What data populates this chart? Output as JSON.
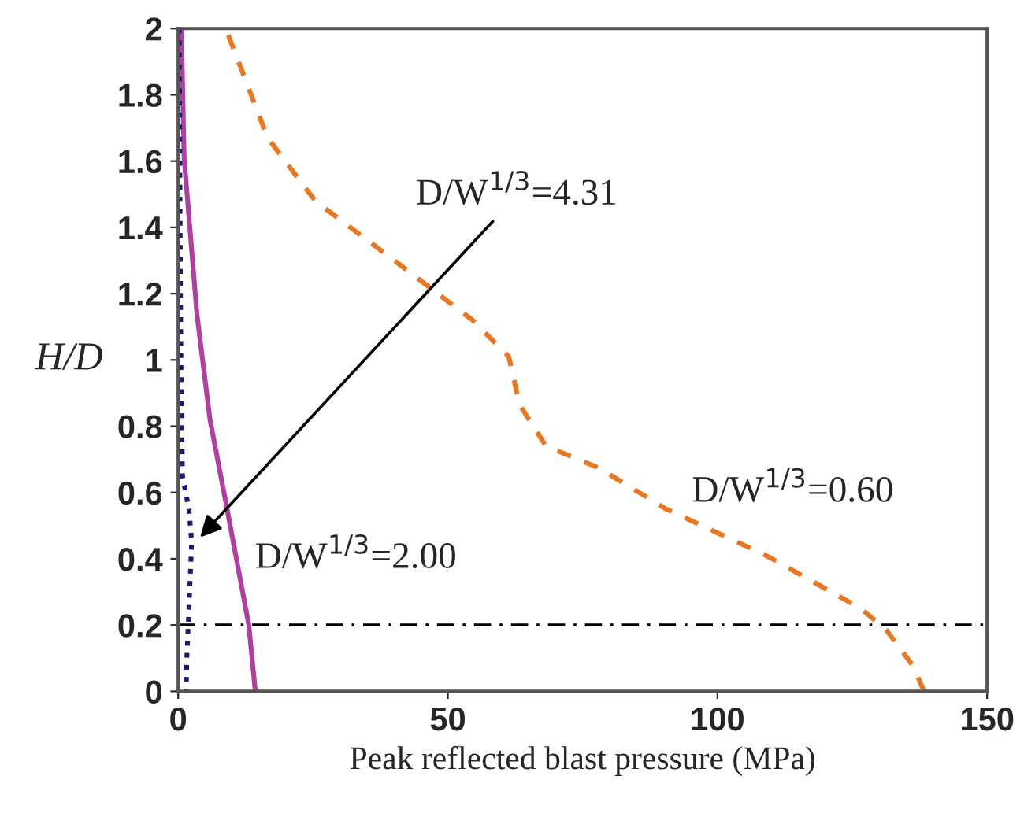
{
  "chart_data": {
    "type": "line",
    "xlabel": "Peak reflected blast pressure (MPa)",
    "ylabel": "H/D",
    "xlim": [
      0,
      150
    ],
    "xticks": [
      0,
      50,
      100,
      150
    ],
    "ylim": [
      0,
      2
    ],
    "yticks": [
      0,
      0.2,
      0.4,
      0.6,
      0.8,
      1,
      1.2,
      1.4,
      1.6,
      1.8,
      2
    ],
    "grid": false,
    "legend": false,
    "marker": "none",
    "series": [
      {
        "color": "#e87722",
        "line_style": "dashed",
        "x": [
          9.3,
          16.6,
          25.4,
          40.9,
          54.6,
          61.3,
          63.3,
          68.2,
          77.9,
          90.5,
          109,
          126.6,
          131.3,
          136.3,
          138.3
        ],
        "values": [
          1.98,
          1.67,
          1.48,
          1.29,
          1.12,
          1.01,
          0.865,
          0.74,
          0.675,
          0.55,
          0.41,
          0.25,
          0.185,
          0.076,
          0
        ]
      },
      {
        "color": "#b0409f",
        "line_style": "solid",
        "x": [
          0.6,
          1.1,
          3.5,
          5.9,
          8.9,
          13.1,
          14.3
        ],
        "values": [
          2,
          1.61,
          1.135,
          0.82,
          0.565,
          0.2,
          0
        ]
      },
      {
        "color": "#1a1a6e",
        "line_style": "dotted",
        "x": [
          0.2,
          0.3,
          0.5,
          0.8,
          2.0,
          2.5,
          2.0,
          1.6,
          1.5
        ],
        "values": [
          2,
          1.6,
          1.0,
          0.65,
          0.55,
          0.45,
          0.25,
          0.1,
          0
        ]
      }
    ],
    "ref_lines": [
      {
        "axis": "y",
        "value": 0.2,
        "label": null,
        "color": "#000000",
        "line_style": "dashdot"
      }
    ],
    "annotations": [
      {
        "text": "D/W$^{1/3}$=4.31",
        "x": 3.5,
        "y": 0.455
      },
      "D/W$^{1/3}$=2.00",
      "D/W$^{1/3}$=0.60"
    ]
  }
}
